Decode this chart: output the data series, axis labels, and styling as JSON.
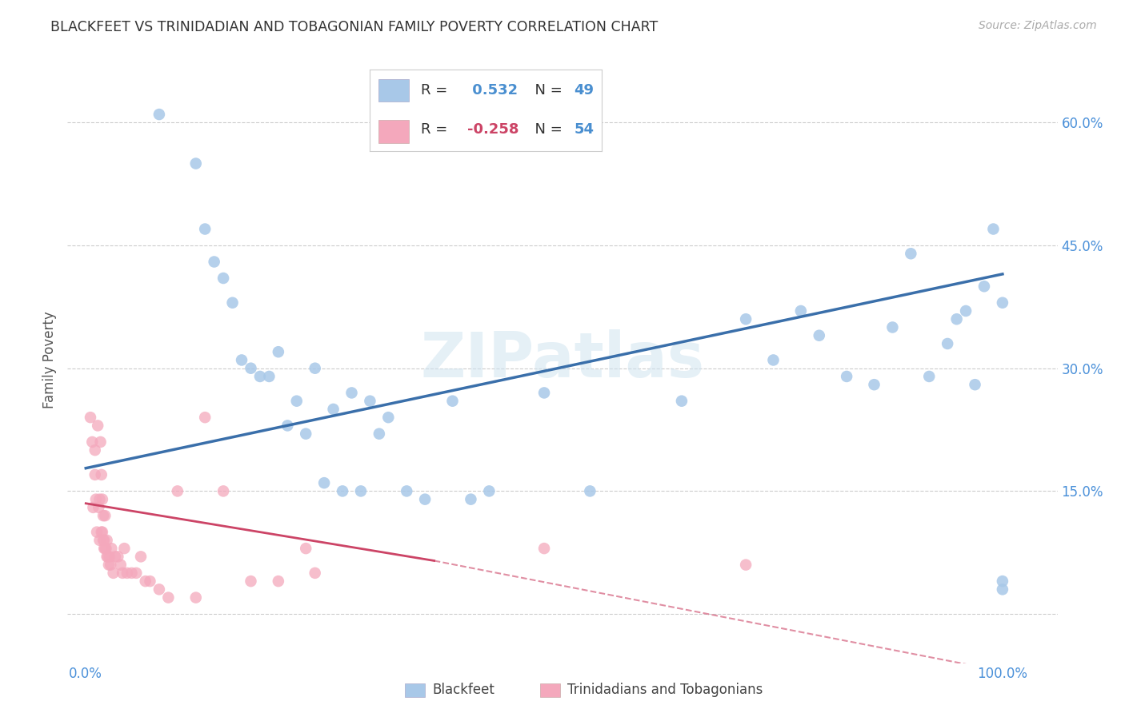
{
  "title": "BLACKFEET VS TRINIDADIAN AND TOBAGONIAN FAMILY POVERTY CORRELATION CHART",
  "source": "Source: ZipAtlas.com",
  "ylabel": "Family Poverty",
  "watermark": "ZIPatlas",
  "legend_blue_r": "0.532",
  "legend_blue_n": "49",
  "legend_pink_r": "-0.258",
  "legend_pink_n": "54",
  "blue_label": "Blackfeet",
  "pink_label": "Trinidadians and Tobagonians",
  "xlim": [
    -0.02,
    1.06
  ],
  "ylim": [
    -0.06,
    0.68
  ],
  "xticks": [
    0.0,
    0.25,
    0.5,
    0.75,
    1.0
  ],
  "yticks": [
    0.0,
    0.15,
    0.3,
    0.45,
    0.6
  ],
  "ytick_labels_right": [
    "",
    "15.0%",
    "30.0%",
    "45.0%",
    "60.0%"
  ],
  "blue_color": "#a8c8e8",
  "pink_color": "#f4a8bc",
  "blue_line_color": "#3a6faa",
  "pink_line_color": "#cc4466",
  "grid_color": "#cccccc",
  "bg_color": "#ffffff",
  "title_color": "#333333",
  "tick_color": "#4a90d9",
  "blue_x": [
    0.08,
    0.12,
    0.13,
    0.14,
    0.15,
    0.16,
    0.17,
    0.18,
    0.19,
    0.2,
    0.21,
    0.22,
    0.23,
    0.24,
    0.25,
    0.26,
    0.27,
    0.28,
    0.29,
    0.3,
    0.31,
    0.32,
    0.33,
    0.35,
    0.37,
    0.4,
    0.42,
    0.44,
    0.5,
    0.55,
    0.65,
    0.72,
    0.75,
    0.78,
    0.8,
    0.83,
    0.86,
    0.88,
    0.9,
    0.92,
    0.94,
    0.95,
    0.96,
    0.97,
    0.98,
    0.99,
    1.0,
    1.0,
    1.0
  ],
  "blue_y": [
    0.61,
    0.55,
    0.47,
    0.43,
    0.41,
    0.38,
    0.31,
    0.3,
    0.29,
    0.29,
    0.32,
    0.23,
    0.26,
    0.22,
    0.3,
    0.16,
    0.25,
    0.15,
    0.27,
    0.15,
    0.26,
    0.22,
    0.24,
    0.15,
    0.14,
    0.26,
    0.14,
    0.15,
    0.27,
    0.15,
    0.26,
    0.36,
    0.31,
    0.37,
    0.34,
    0.29,
    0.28,
    0.35,
    0.44,
    0.29,
    0.33,
    0.36,
    0.37,
    0.28,
    0.4,
    0.47,
    0.38,
    0.04,
    0.03
  ],
  "pink_x": [
    0.005,
    0.007,
    0.008,
    0.01,
    0.01,
    0.011,
    0.012,
    0.013,
    0.014,
    0.015,
    0.015,
    0.016,
    0.017,
    0.017,
    0.018,
    0.018,
    0.019,
    0.019,
    0.02,
    0.02,
    0.021,
    0.021,
    0.022,
    0.023,
    0.023,
    0.024,
    0.025,
    0.026,
    0.027,
    0.028,
    0.03,
    0.032,
    0.035,
    0.038,
    0.04,
    0.042,
    0.045,
    0.05,
    0.055,
    0.06,
    0.065,
    0.07,
    0.08,
    0.09,
    0.1,
    0.12,
    0.13,
    0.15,
    0.18,
    0.21,
    0.24,
    0.5,
    0.72,
    0.25
  ],
  "pink_y": [
    0.24,
    0.21,
    0.13,
    0.2,
    0.17,
    0.14,
    0.1,
    0.23,
    0.13,
    0.14,
    0.09,
    0.21,
    0.17,
    0.1,
    0.14,
    0.1,
    0.09,
    0.12,
    0.08,
    0.09,
    0.12,
    0.08,
    0.08,
    0.09,
    0.07,
    0.07,
    0.06,
    0.07,
    0.06,
    0.08,
    0.05,
    0.07,
    0.07,
    0.06,
    0.05,
    0.08,
    0.05,
    0.05,
    0.05,
    0.07,
    0.04,
    0.04,
    0.03,
    0.02,
    0.15,
    0.02,
    0.24,
    0.15,
    0.04,
    0.04,
    0.08,
    0.08,
    0.06,
    0.05
  ],
  "blue_line": [
    0.0,
    1.0,
    0.178,
    0.415
  ],
  "pink_line_solid": [
    0.0,
    0.38,
    0.135,
    0.065
  ],
  "pink_line_dash": [
    0.38,
    1.0,
    0.065,
    -0.07
  ]
}
